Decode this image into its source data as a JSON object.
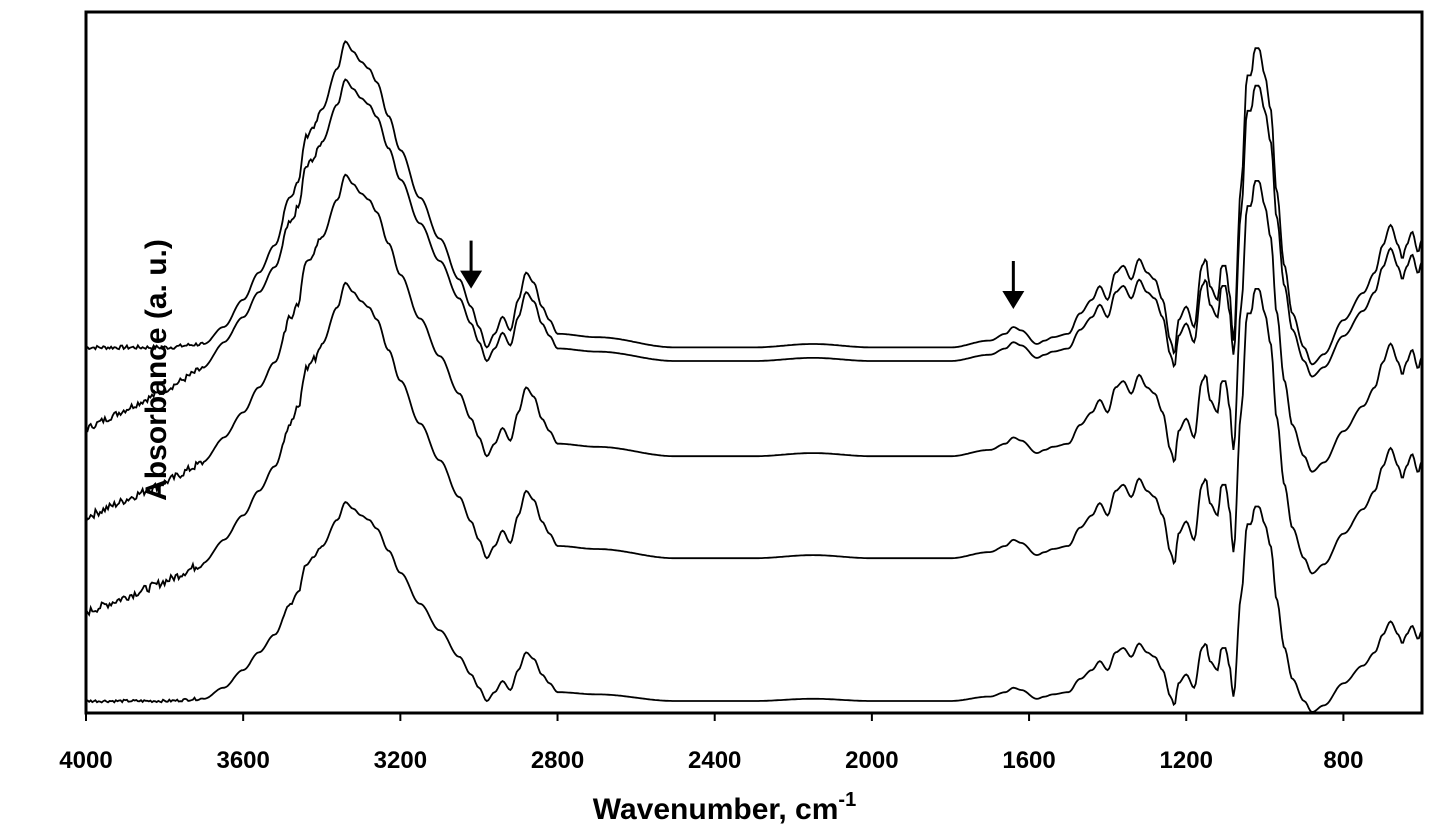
{
  "chart_data": {
    "type": "line",
    "xlabel_main": "Wavenumber, cm",
    "xlabel_sup": "-1",
    "ylabel": "Absorbance (a. u.)",
    "xlim": [
      4000,
      600
    ],
    "xticks": [
      4000,
      3600,
      3200,
      2800,
      2400,
      2000,
      1600,
      1200,
      800
    ],
    "y_ticks_shown": false,
    "grid": false,
    "legend": "none",
    "annotations": [
      {
        "type": "arrow",
        "x": 3020,
        "series": 0
      },
      {
        "type": "arrow",
        "x": 1640,
        "series": 0
      }
    ],
    "shape_points": [
      [
        4000,
        0.0
      ],
      [
        3800,
        0.0
      ],
      [
        3700,
        0.01
      ],
      [
        3650,
        0.06
      ],
      [
        3600,
        0.14
      ],
      [
        3560,
        0.22
      ],
      [
        3520,
        0.3
      ],
      [
        3480,
        0.44
      ],
      [
        3460,
        0.49
      ],
      [
        3440,
        0.62
      ],
      [
        3420,
        0.65
      ],
      [
        3400,
        0.7
      ],
      [
        3360,
        0.82
      ],
      [
        3340,
        0.9
      ],
      [
        3320,
        0.87
      ],
      [
        3300,
        0.84
      ],
      [
        3280,
        0.82
      ],
      [
        3260,
        0.78
      ],
      [
        3230,
        0.68
      ],
      [
        3200,
        0.58
      ],
      [
        3150,
        0.44
      ],
      [
        3100,
        0.32
      ],
      [
        3050,
        0.2
      ],
      [
        3020,
        0.12
      ],
      [
        3000,
        0.06
      ],
      [
        2980,
        0.0
      ],
      [
        2960,
        0.04
      ],
      [
        2940,
        0.09
      ],
      [
        2920,
        0.05
      ],
      [
        2900,
        0.14
      ],
      [
        2880,
        0.22
      ],
      [
        2860,
        0.19
      ],
      [
        2840,
        0.12
      ],
      [
        2820,
        0.08
      ],
      [
        2800,
        0.04
      ],
      [
        2700,
        0.03
      ],
      [
        2500,
        0.0
      ],
      [
        2300,
        0.0
      ],
      [
        2150,
        0.01
      ],
      [
        2000,
        0.0
      ],
      [
        1800,
        0.0
      ],
      [
        1700,
        0.02
      ],
      [
        1660,
        0.04
      ],
      [
        1640,
        0.06
      ],
      [
        1620,
        0.05
      ],
      [
        1580,
        0.01
      ],
      [
        1560,
        0.02
      ],
      [
        1540,
        0.03
      ],
      [
        1500,
        0.04
      ],
      [
        1470,
        0.1
      ],
      [
        1440,
        0.14
      ],
      [
        1420,
        0.18
      ],
      [
        1400,
        0.14
      ],
      [
        1380,
        0.22
      ],
      [
        1360,
        0.24
      ],
      [
        1340,
        0.2
      ],
      [
        1320,
        0.26
      ],
      [
        1300,
        0.22
      ],
      [
        1280,
        0.2
      ],
      [
        1260,
        0.14
      ],
      [
        1240,
        0.02
      ],
      [
        1230,
        -0.02
      ],
      [
        1220,
        0.08
      ],
      [
        1200,
        0.12
      ],
      [
        1180,
        0.06
      ],
      [
        1160,
        0.24
      ],
      [
        1150,
        0.26
      ],
      [
        1140,
        0.18
      ],
      [
        1120,
        0.14
      ],
      [
        1110,
        0.24
      ],
      [
        1100,
        0.24
      ],
      [
        1090,
        0.16
      ],
      [
        1080,
        0.02
      ],
      [
        1060,
        0.48
      ],
      [
        1045,
        0.8
      ],
      [
        1035,
        0.8
      ],
      [
        1025,
        0.88
      ],
      [
        1015,
        0.88
      ],
      [
        1000,
        0.8
      ],
      [
        985,
        0.7
      ],
      [
        970,
        0.46
      ],
      [
        950,
        0.24
      ],
      [
        930,
        0.1
      ],
      [
        900,
        0.0
      ],
      [
        880,
        -0.05
      ],
      [
        850,
        -0.02
      ],
      [
        800,
        0.08
      ],
      [
        750,
        0.16
      ],
      [
        720,
        0.22
      ],
      [
        700,
        0.3
      ],
      [
        680,
        0.36
      ],
      [
        660,
        0.3
      ],
      [
        650,
        0.26
      ],
      [
        640,
        0.3
      ],
      [
        625,
        0.34
      ],
      [
        610,
        0.28
      ],
      [
        600,
        0.32
      ]
    ],
    "series": [
      {
        "offset": 0.52,
        "noise": 0.006,
        "drift": 0.0,
        "peak_scale": 1.0
      },
      {
        "offset": 0.4,
        "noise": 0.01,
        "drift": 0.1,
        "peak_scale": 0.92
      },
      {
        "offset": 0.27,
        "noise": 0.012,
        "drift": 0.09,
        "peak_scale": 0.92
      },
      {
        "offset": 0.13,
        "noise": 0.012,
        "drift": 0.08,
        "peak_scale": 0.9
      },
      {
        "offset": 0.0,
        "noise": 0.004,
        "drift": 0.0,
        "peak_scale": 0.65
      }
    ]
  }
}
